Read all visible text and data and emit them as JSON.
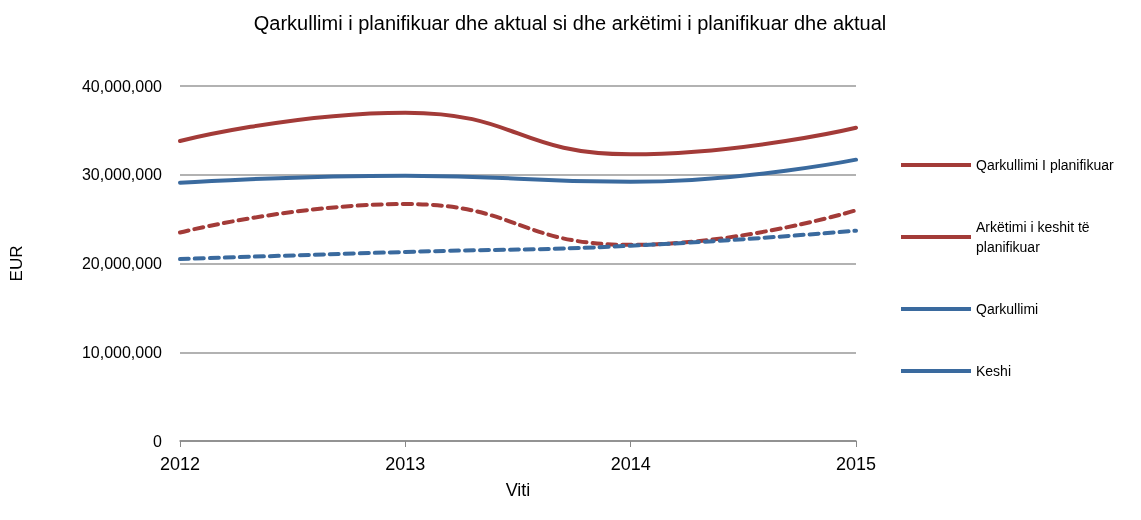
{
  "chart_data": {
    "type": "line",
    "title": "Qarkullimi i planifikuar dhe aktual si dhe arkëtimi i planifikuar dhe aktual",
    "xlabel": "Viti",
    "ylabel": "EUR",
    "x": [
      2012,
      2013,
      2014,
      2015
    ],
    "series": [
      {
        "name": "Qarkullimi I planifikuar",
        "color": "#a33b38",
        "line_style": "solid",
        "values": [
          33800000,
          37000000,
          32300000,
          35300000
        ]
      },
      {
        "name": "Arkëtimi i keshit të planifikuar",
        "color": "#a33b38",
        "line_style": "dashed",
        "values": [
          23500000,
          26700000,
          22100000,
          26000000
        ]
      },
      {
        "name": "Qarkullimi",
        "color": "#3a6a9e",
        "line_style": "solid",
        "values": [
          29100000,
          29900000,
          29200000,
          31700000
        ]
      },
      {
        "name": "Keshi",
        "color": "#3a6a9e",
        "line_style": "dashed",
        "values": [
          20500000,
          21300000,
          22000000,
          23700000
        ]
      }
    ],
    "xlim": [
      2012,
      2015
    ],
    "xticks": [
      2012,
      2013,
      2014,
      2015
    ],
    "ylim": [
      0,
      40000000
    ],
    "yticks": [
      {
        "value": 0,
        "label": "0"
      },
      {
        "value": 10000000,
        "label": "10,000,000"
      },
      {
        "value": 20000000,
        "label": "20,000,000"
      },
      {
        "value": 30000000,
        "label": "30,000,000"
      },
      {
        "value": 40000000,
        "label": "40,000,000"
      }
    ],
    "grid": "y",
    "legend": "right",
    "marker": "none"
  }
}
